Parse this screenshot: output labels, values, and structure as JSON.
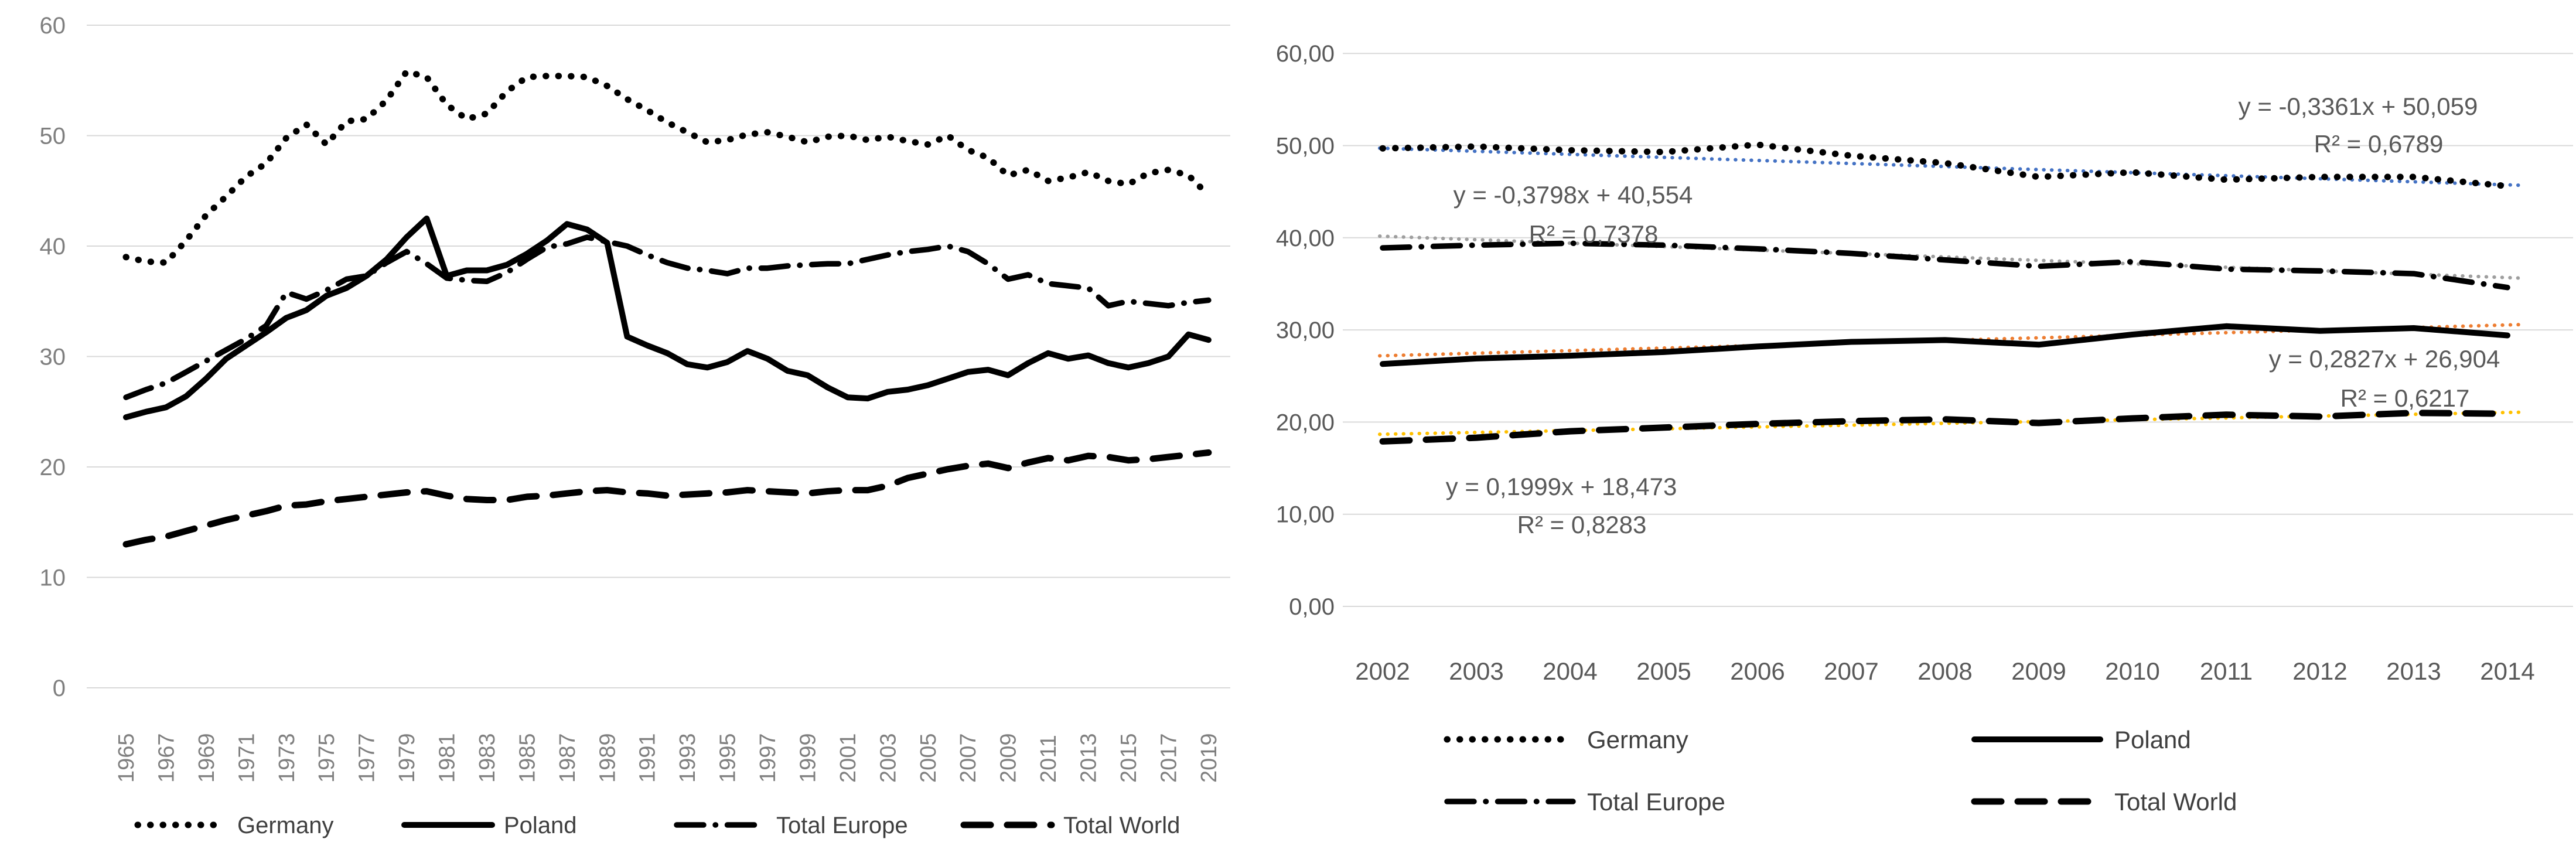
{
  "page": {
    "background": "#ffffff"
  },
  "colors": {
    "series_black": "#000000",
    "gridline": "#d9d9d9",
    "axis_label_left_chart": "#7f7f7f",
    "axis_label_right_chart": "#595959",
    "legend_text": "#3f3f3f",
    "equation_text": "#595959",
    "trend_germany": "#4472c4",
    "trend_total_europe": "#9e9e9e",
    "trend_poland": "#ed7d31",
    "trend_total_world": "#ffc000"
  },
  "chart_data": [
    {
      "name": "coal-share-1965-2019",
      "type": "line",
      "title": "",
      "xlabel": "",
      "ylabel": "",
      "ylim": [
        0,
        60
      ],
      "grid": true,
      "legend_position": "bottom",
      "x": [
        1965,
        1966,
        1967,
        1968,
        1969,
        1970,
        1971,
        1972,
        1973,
        1974,
        1975,
        1976,
        1977,
        1978,
        1979,
        1980,
        1981,
        1982,
        1983,
        1984,
        1985,
        1986,
        1987,
        1988,
        1989,
        1990,
        1991,
        1992,
        1993,
        1994,
        1995,
        1996,
        1997,
        1998,
        1999,
        2000,
        2001,
        2002,
        2003,
        2004,
        2005,
        2006,
        2007,
        2008,
        2009,
        2010,
        2011,
        2012,
        2013,
        2014,
        2015,
        2016,
        2017,
        2018,
        2019
      ],
      "x_tick_labels": [
        "1965",
        "1967",
        "1969",
        "1971",
        "1973",
        "1975",
        "1977",
        "1979",
        "1981",
        "1983",
        "1985",
        "1987",
        "1989",
        "1991",
        "1993",
        "1995",
        "1997",
        "1999",
        "2001",
        "2003",
        "2005",
        "2007",
        "2009",
        "2011",
        "2013",
        "2015",
        "2017",
        "2019"
      ],
      "y_axis": {
        "min": 0,
        "max": 60,
        "step": 10,
        "tick_labels": [
          "0",
          "10",
          "20",
          "30",
          "40",
          "50",
          "60"
        ]
      },
      "series": [
        {
          "id": "germany",
          "name": "Germany",
          "line_style": "dotted",
          "color": "#000000",
          "values": [
            39.0,
            38.6,
            38.5,
            40.5,
            42.8,
            44.5,
            46.3,
            47.5,
            49.8,
            51.0,
            49.2,
            51.3,
            51.5,
            53.2,
            55.8,
            55.3,
            52.8,
            51.5,
            52.0,
            54.0,
            55.3,
            55.4,
            55.4,
            55.3,
            54.5,
            53.3,
            52.3,
            51.2,
            50.3,
            49.4,
            49.6,
            50.1,
            50.3,
            49.9,
            49.4,
            49.9,
            50.0,
            49.6,
            49.9,
            49.5,
            49.2,
            50.0,
            48.7,
            48.0,
            46.4,
            46.9,
            45.9,
            46.2,
            46.7,
            45.9,
            45.6,
            46.6,
            46.9,
            46.4,
            44.6
          ]
        },
        {
          "id": "poland",
          "name": "Poland",
          "line_style": "solid",
          "color": "#000000",
          "values": [
            24.5,
            25.0,
            25.4,
            26.4,
            28.0,
            29.8,
            31.0,
            32.2,
            33.5,
            34.2,
            35.5,
            36.2,
            37.3,
            38.8,
            40.8,
            42.5,
            37.3,
            37.8,
            37.8,
            38.3,
            39.3,
            40.5,
            42.0,
            41.5,
            40.3,
            31.8,
            31.0,
            30.3,
            29.3,
            29.0,
            29.5,
            30.5,
            29.8,
            28.7,
            28.3,
            27.2,
            26.3,
            26.2,
            26.8,
            27.0,
            27.4,
            28.0,
            28.6,
            28.8,
            28.3,
            29.4,
            30.3,
            29.8,
            30.1,
            29.4,
            29.0,
            29.4,
            30.0,
            32.0,
            31.5
          ]
        },
        {
          "id": "total-europe",
          "name": "Total Europe",
          "line_style": "dashdot",
          "color": "#000000",
          "values": [
            26.3,
            27.0,
            27.6,
            28.6,
            29.6,
            30.6,
            31.6,
            32.8,
            35.8,
            35.2,
            36.0,
            37.0,
            37.3,
            38.5,
            39.5,
            38.4,
            37.1,
            36.9,
            36.8,
            37.6,
            38.8,
            39.9,
            40.2,
            40.8,
            40.4,
            40.0,
            39.2,
            38.5,
            38.0,
            37.8,
            37.5,
            38.0,
            38.0,
            38.2,
            38.3,
            38.4,
            38.4,
            38.8,
            39.2,
            39.5,
            39.7,
            40.0,
            39.5,
            38.4,
            37.0,
            37.4,
            36.6,
            36.4,
            36.2,
            34.6,
            35.0,
            34.8,
            34.6,
            34.9,
            35.1
          ]
        },
        {
          "id": "total-world",
          "name": "Total World",
          "line_style": "dashed",
          "color": "#000000",
          "values": [
            13.0,
            13.4,
            13.7,
            14.2,
            14.7,
            15.2,
            15.6,
            16.0,
            16.5,
            16.6,
            16.9,
            17.1,
            17.3,
            17.5,
            17.7,
            17.8,
            17.4,
            17.1,
            17.0,
            17.0,
            17.3,
            17.4,
            17.6,
            17.8,
            17.9,
            17.7,
            17.6,
            17.4,
            17.5,
            17.6,
            17.7,
            17.9,
            17.8,
            17.7,
            17.6,
            17.8,
            17.9,
            17.9,
            18.3,
            19.0,
            19.4,
            19.8,
            20.1,
            20.3,
            19.9,
            20.4,
            20.8,
            20.6,
            21.0,
            20.9,
            20.6,
            20.7,
            20.9,
            21.1,
            21.3
          ]
        }
      ],
      "legend": {
        "items": [
          {
            "id": "germany",
            "label": "Germany",
            "style": "dotted"
          },
          {
            "id": "poland",
            "label": "Poland",
            "style": "solid"
          },
          {
            "id": "total-europe",
            "label": "Total Europe",
            "style": "dashdot"
          },
          {
            "id": "total-world",
            "label": "Total World",
            "style": "dashed"
          }
        ]
      }
    },
    {
      "name": "coal-share-2002-2014-trendlines",
      "type": "line",
      "title": "",
      "xlabel": "",
      "ylabel": "",
      "ylim": [
        0,
        60
      ],
      "grid": true,
      "legend_position": "bottom",
      "x": [
        2002,
        2003,
        2004,
        2005,
        2006,
        2007,
        2008,
        2009,
        2010,
        2011,
        2012,
        2013,
        2014
      ],
      "x_tick_labels": [
        "2002",
        "2003",
        "2004",
        "2005",
        "2006",
        "2007",
        "2008",
        "2009",
        "2010",
        "2011",
        "2012",
        "2013",
        "2014"
      ],
      "y_axis": {
        "min": 0,
        "max": 60,
        "step": 10,
        "tick_labels": [
          "0,00",
          "10,00",
          "20,00",
          "30,00",
          "40,00",
          "50,00",
          "60,00"
        ]
      },
      "series": [
        {
          "id": "germany",
          "name": "Germany",
          "line_style": "dotted",
          "color": "#000000",
          "values": [
            49.7,
            49.9,
            49.5,
            49.3,
            50.1,
            48.9,
            48.1,
            46.6,
            47.1,
            46.3,
            46.6,
            46.6,
            45.6
          ]
        },
        {
          "id": "poland",
          "name": "Poland",
          "line_style": "solid",
          "color": "#000000",
          "values": [
            26.3,
            26.9,
            27.2,
            27.6,
            28.2,
            28.7,
            28.9,
            28.4,
            29.5,
            30.4,
            29.9,
            30.2,
            29.4
          ]
        },
        {
          "id": "total-europe",
          "name": "Total Europe",
          "line_style": "dashdot",
          "color": "#000000",
          "values": [
            38.9,
            39.2,
            39.4,
            39.2,
            38.8,
            38.3,
            37.6,
            36.9,
            37.4,
            36.6,
            36.4,
            36.1,
            34.6
          ]
        },
        {
          "id": "total-world",
          "name": "Total World",
          "line_style": "dashed",
          "color": "#000000",
          "values": [
            17.9,
            18.3,
            19.0,
            19.4,
            19.8,
            20.1,
            20.3,
            19.9,
            20.4,
            20.8,
            20.6,
            21.0,
            20.9
          ]
        }
      ],
      "trendlines": [
        {
          "id": "germany",
          "series": "Germany",
          "color": "#4472c4",
          "slope": -0.3361,
          "intercept": 50.059,
          "equation": "y = -0,3361x + 50,059",
          "r_squared": "R² = 0,6789"
        },
        {
          "id": "total-europe",
          "series": "Total Europe",
          "color": "#9e9e9e",
          "slope": -0.3798,
          "intercept": 40.554,
          "equation": "y = -0,3798x + 40,554",
          "r_squared": "R² = 0,7378"
        },
        {
          "id": "poland",
          "series": "Poland",
          "color": "#ed7d31",
          "slope": 0.2827,
          "intercept": 26.904,
          "equation": "y = 0,2827x + 26,904",
          "r_squared": "R² = 0,6217"
        },
        {
          "id": "total-world",
          "series": "Total World",
          "color": "#ffc000",
          "slope": 0.1999,
          "intercept": 18.473,
          "equation": "y = 0,1999x + 18,473",
          "r_squared": "R² = 0,8283"
        }
      ],
      "legend": {
        "rows": [
          [
            {
              "id": "germany",
              "label": "Germany",
              "style": "dotted"
            },
            {
              "id": "poland",
              "label": "Poland",
              "style": "solid"
            }
          ],
          [
            {
              "id": "total-europe",
              "label": "Total Europe",
              "style": "dashdot"
            },
            {
              "id": "total-world",
              "label": "Total World",
              "style": "dashed"
            }
          ]
        ]
      }
    }
  ]
}
